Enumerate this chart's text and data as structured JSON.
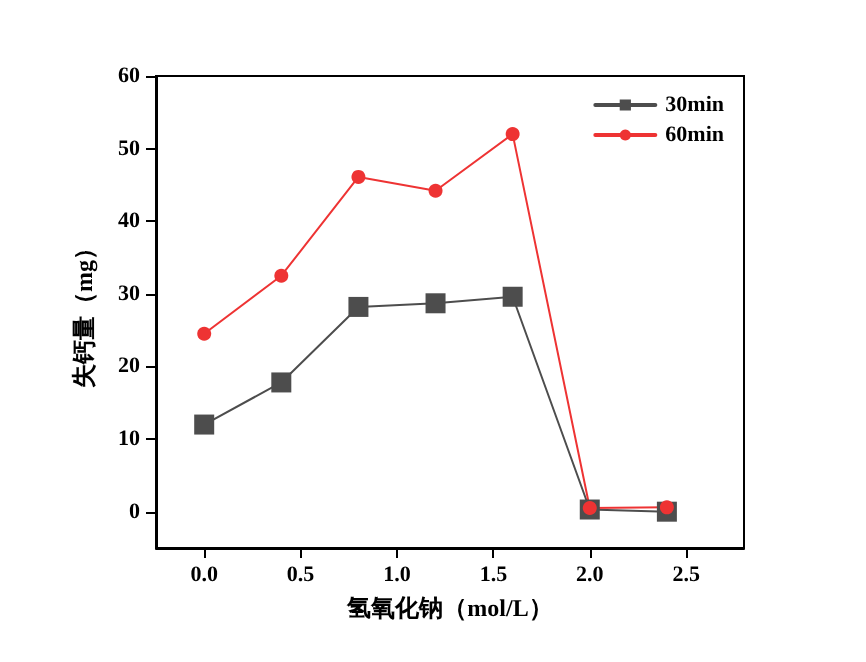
{
  "chart_data": {
    "type": "line",
    "xlabel": "氢氧化钠（mol/L）",
    "ylabel": "失钙量（mg）",
    "x": [
      0,
      0.4,
      0.8,
      1.2,
      1.6,
      2.0,
      2.4
    ],
    "series": [
      {
        "name": "30min",
        "color": "#4d4d4d",
        "marker": "square",
        "values": [
          12,
          17.8,
          28.2,
          28.7,
          29.6,
          0.3,
          0
        ]
      },
      {
        "name": "60min",
        "color": "#ee3333",
        "marker": "circle",
        "values": [
          24.5,
          32.5,
          46.1,
          44.2,
          52,
          0.5,
          0.6
        ]
      }
    ],
    "xlim": [
      -0.25,
      2.8
    ],
    "xticks": [
      {
        "value": 0,
        "label": "0.0"
      },
      0.5,
      {
        "value": 1,
        "label": "1.0"
      },
      1.5,
      {
        "value": 2,
        "label": "2.0"
      },
      2.5
    ],
    "ylim": [
      -5,
      60
    ],
    "yticks": [
      0,
      10,
      20,
      30,
      40,
      50,
      60
    ],
    "grid": false,
    "legend": "top right",
    "line_style": "solid"
  }
}
